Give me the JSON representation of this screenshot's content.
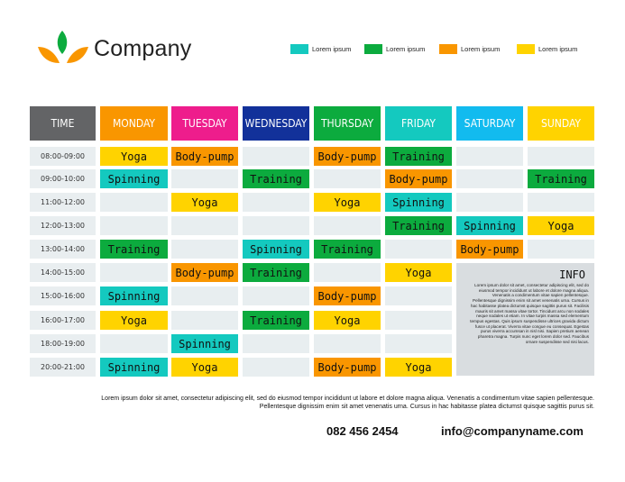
{
  "brand": {
    "name": "Company"
  },
  "legend": [
    {
      "label": "Lorem ipsum",
      "color": "#14c9bf"
    },
    {
      "label": "Lorem ipsum",
      "color": "#0cab3e"
    },
    {
      "label": "Lorem ipsum",
      "color": "#f99600"
    },
    {
      "label": "Lorem ipsum",
      "color": "#ffd300"
    }
  ],
  "headers": [
    {
      "label": "TIME",
      "color": "#636466"
    },
    {
      "label": "MONDAY",
      "color": "#f99600"
    },
    {
      "label": "TUESDAY",
      "color": "#ee1d8c"
    },
    {
      "label": "WEDNESDAY",
      "color": "#12319a"
    },
    {
      "label": "THURSDAY",
      "color": "#0cab3e"
    },
    {
      "label": "FRIDAY",
      "color": "#14c9bf"
    },
    {
      "label": "SATURDAY",
      "color": "#12bbef"
    },
    {
      "label": "SUNDAY",
      "color": "#ffd300"
    }
  ],
  "schedule": [
    {
      "time": "08:00-09:00",
      "cells": [
        "Yoga",
        "Body-pump",
        "",
        "Body-pump",
        "Training",
        "",
        ""
      ]
    },
    {
      "time": "09:00-10:00",
      "cells": [
        "Spinning",
        "",
        "Training",
        "",
        "Body-pump",
        "",
        "Training"
      ]
    },
    {
      "time": "11:00-12:00",
      "cells": [
        "",
        "Yoga",
        "",
        "Yoga",
        "Spinning",
        "",
        ""
      ]
    },
    {
      "time": "12:00-13:00",
      "cells": [
        "",
        "",
        "",
        "",
        "Training",
        "Spinning",
        "Yoga"
      ]
    },
    {
      "time": "13:00-14:00",
      "cells": [
        "Training",
        "",
        "Spinning",
        "Training",
        "",
        "Body-pump",
        ""
      ]
    },
    {
      "time": "14:00-15:00",
      "cells": [
        "",
        "Body-pump",
        "Training",
        "",
        "Yoga"
      ]
    },
    {
      "time": "15:00-16:00",
      "cells": [
        "Spinning",
        "",
        "",
        "Body-pump",
        ""
      ]
    },
    {
      "time": "16:00-17:00",
      "cells": [
        "Yoga",
        "",
        "Training",
        "Yoga",
        ""
      ]
    },
    {
      "time": "18:00-19:00",
      "cells": [
        "",
        "Spinning",
        "",
        "",
        ""
      ]
    },
    {
      "time": "20:00-21:00",
      "cells": [
        "Spinning",
        "Yoga",
        "",
        "Body-pump",
        "Yoga"
      ]
    }
  ],
  "activity_colors": {
    "Yoga": "#ffd300",
    "Body-pump": "#f99600",
    "Training": "#0cab3e",
    "Spinning": "#14c9bf",
    "empty": "#e8eef0"
  },
  "info": {
    "title": "INFO",
    "text": "Lorem ipsum dolor sit amet, consectetur adipiscing elit, sed do eiusmod tempor incididunt ut labore et dolore magna aliqua. Venenatis a condimentum vitae sapien pellentesque. Pellentesque dignissim enim sit amet venenatis urna. Cursus in hac habitasse platea dictumst quisque sagittis purus sit. Facilisis mauris sit amet massa vitae tortor. Tincidunt arcu non sodales neque sodales ut etiam. In vitae turpis massa sed elementum tempus egestas. Quis ipsum suspendisse ultrices gravida dictum fusce ut placerat. Viverra vitae congue eu consequat. Egestas purus viverra accumsan in nisl nisi. Sapien pretium aenean pharetra magna. Turpis nunc eget lorem dolor sed. Faucibus ornare suspendisse sed nisi lacus."
  },
  "footer": {
    "text": "Lorem ipsum dolor sit amet, consectetur adipiscing elit, sed do eiusmod tempor incididunt ut labore et dolore magna aliqua. Venenatis a condimentum vitae sapien pellentesque. Pellentesque dignissim enim sit amet venenatis urna. Cursus in hac habitasse platea dictumst quisque sagittis purus sit.",
    "phone": "082 456 2454",
    "email": "info@companyname.com"
  }
}
